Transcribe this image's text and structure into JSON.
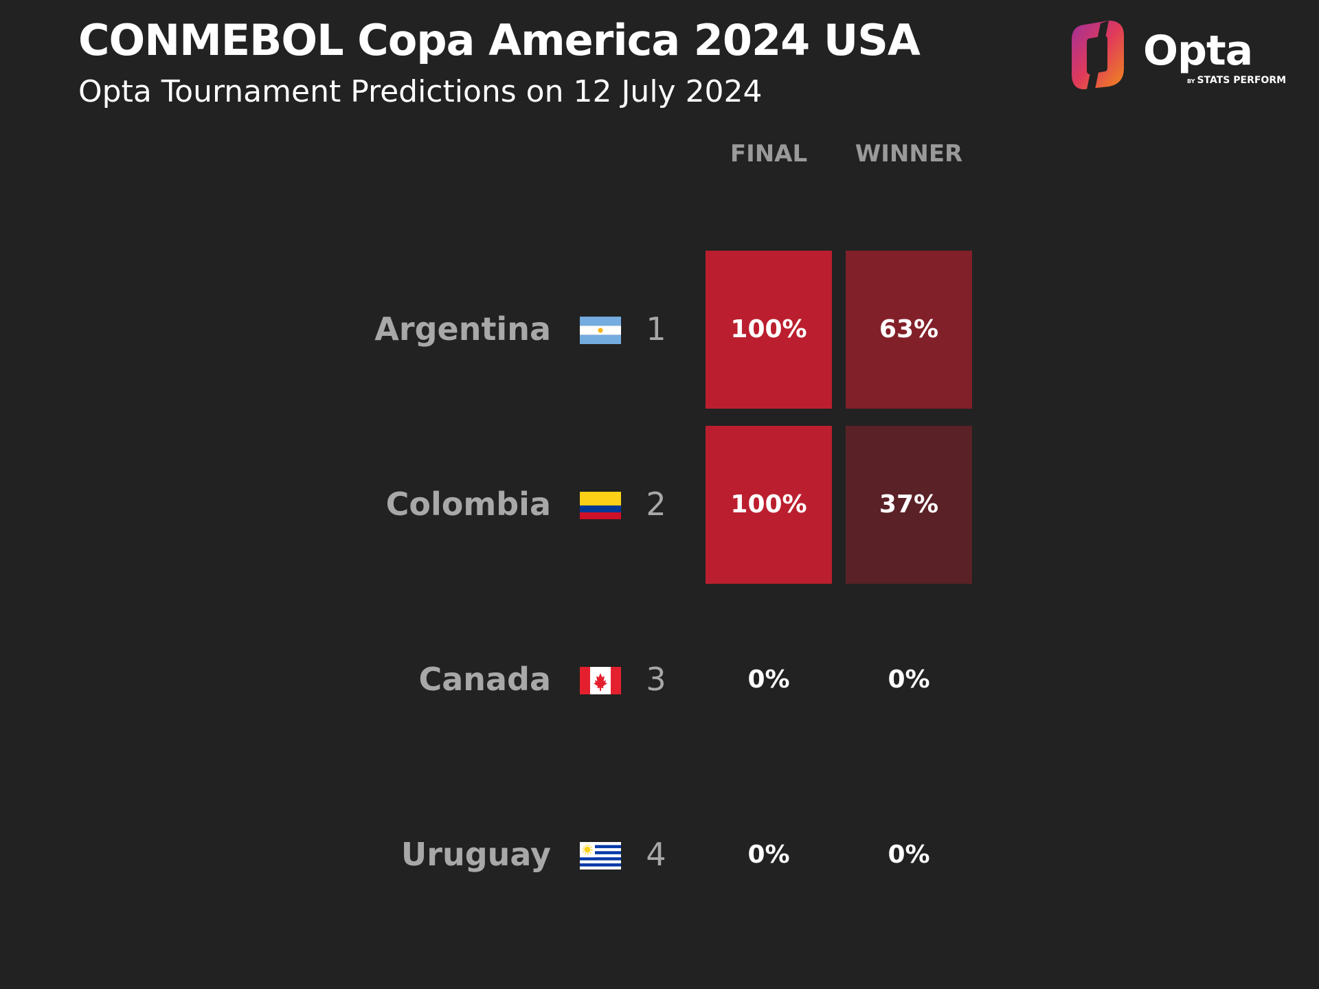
{
  "header": {
    "title": "CONMEBOL Copa America 2024 USA",
    "subtitle": "Opta Tournament Predictions on 12 July 2024"
  },
  "logo": {
    "wordmark": "Opta",
    "by_small": "BY",
    "by_text": "STATS PERFORM"
  },
  "colors": {
    "background": "#222222",
    "final_cell": "#bb1f2f",
    "winner_high": "#82202a",
    "winner_low": "#5a2127"
  },
  "chart_data": {
    "type": "table",
    "title": "CONMEBOL Copa America 2024 USA",
    "subtitle": "Opta Tournament Predictions on 12 July 2024",
    "columns": [
      "FINAL",
      "WINNER"
    ],
    "rows": [
      {
        "team": "Argentina",
        "flag": "argentina-flag-icon",
        "rank": "1",
        "final": 100,
        "winner": 63,
        "final_label": "100%",
        "winner_label": "63%"
      },
      {
        "team": "Colombia",
        "flag": "colombia-flag-icon",
        "rank": "2",
        "final": 100,
        "winner": 37,
        "final_label": "100%",
        "winner_label": "37%"
      },
      {
        "team": "Canada",
        "flag": "canada-flag-icon",
        "rank": "3",
        "final": 0,
        "winner": 0,
        "final_label": "0%",
        "winner_label": "0%"
      },
      {
        "team": "Uruguay",
        "flag": "uruguay-flag-icon",
        "rank": "4",
        "final": 0,
        "winner": 0,
        "final_label": "0%",
        "winner_label": "0%"
      }
    ]
  }
}
